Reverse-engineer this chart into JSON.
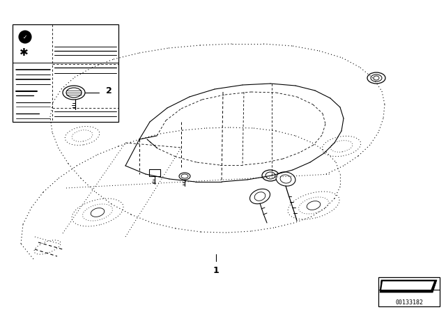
{
  "bg_color": "#ffffff",
  "fig_width": 6.4,
  "fig_height": 4.48,
  "dpi": 100,
  "label1": "1",
  "label2": "2",
  "part_number": "00133182",
  "line_color": "#000000",
  "car_color": "#000000",
  "dot_pattern": [
    1,
    3
  ],
  "dash_pattern": [
    4,
    3
  ]
}
